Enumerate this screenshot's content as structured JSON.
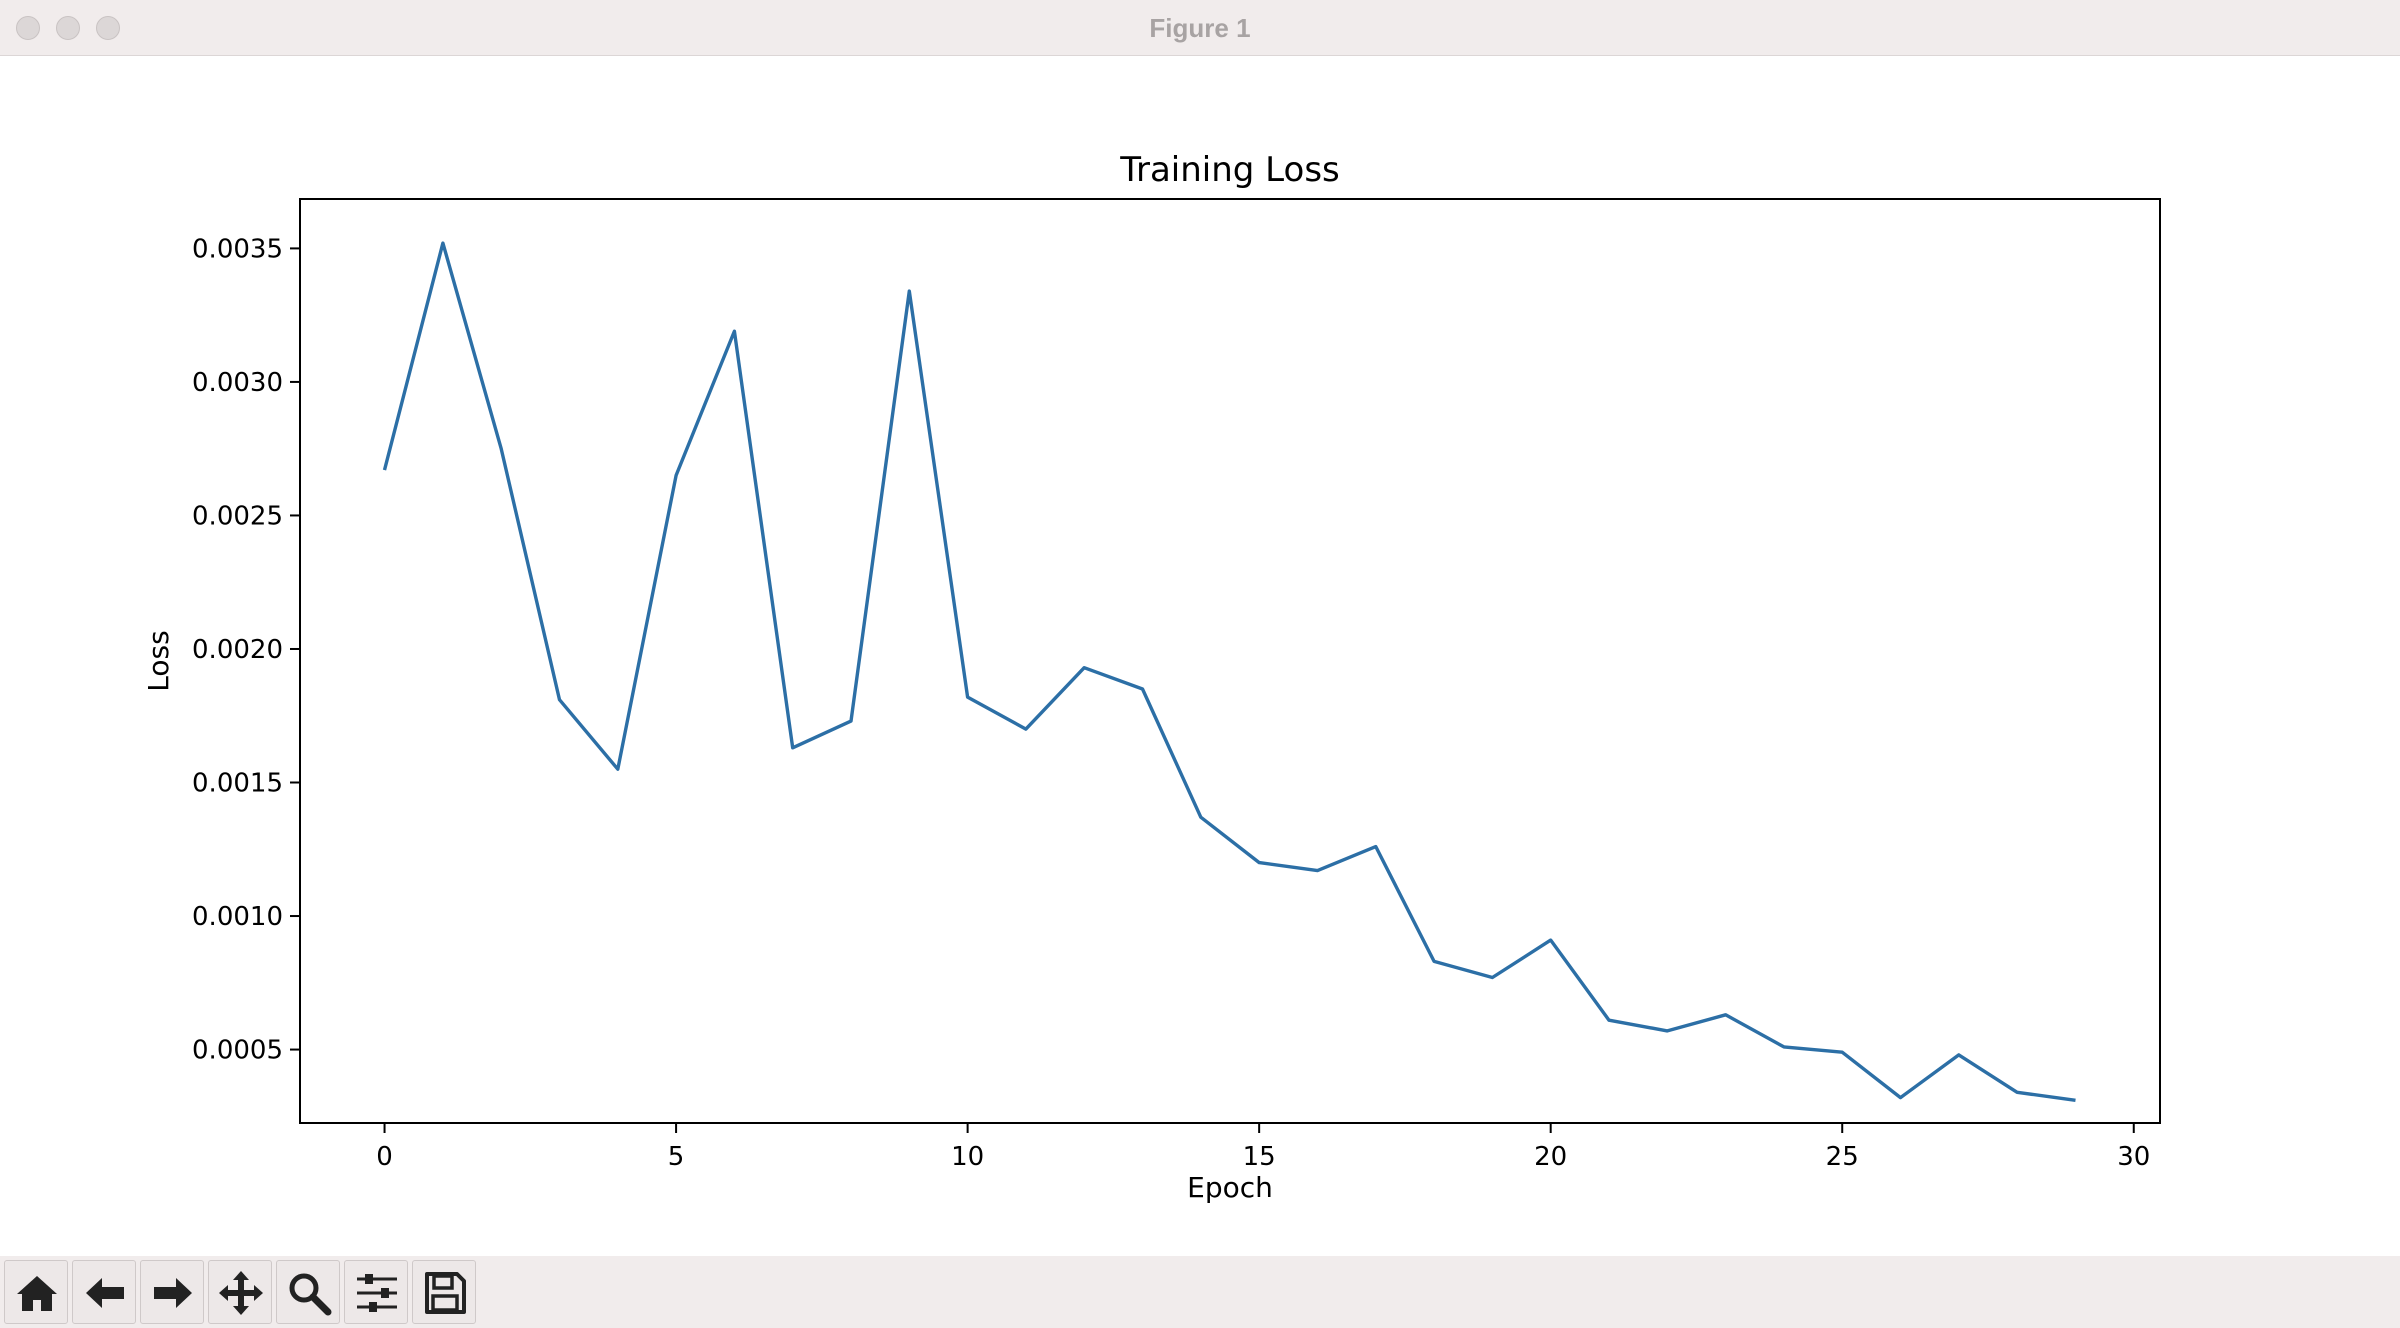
{
  "window": {
    "title": "Figure 1"
  },
  "toolbar": {
    "tools": [
      {
        "icon": "home-icon"
      },
      {
        "icon": "back-arrow-icon"
      },
      {
        "icon": "forward-arrow-icon"
      },
      {
        "icon": "pan-move-icon"
      },
      {
        "icon": "zoom-magnifier-icon"
      },
      {
        "icon": "subplots-sliders-icon"
      },
      {
        "icon": "save-disk-icon"
      }
    ]
  },
  "colors": {
    "line": "#2c6fa6",
    "titlebar": "#f1ecec",
    "toolbar": "#f1ecec"
  },
  "chart_data": {
    "type": "line",
    "title": "Training Loss",
    "xlabel": "Epoch",
    "ylabel": "Loss",
    "xlim": [
      -1.45,
      30.45
    ],
    "ylim": [
      0.000225,
      0.003685
    ],
    "xticks": [
      0,
      5,
      10,
      15,
      20,
      25,
      30
    ],
    "xtick_labels": [
      "0",
      "5",
      "10",
      "15",
      "20",
      "25",
      "30"
    ],
    "yticks": [
      0.0005,
      0.001,
      0.0015,
      0.002,
      0.0025,
      0.003,
      0.0035
    ],
    "ytick_labels": [
      "0.0005",
      "0.0010",
      "0.0015",
      "0.0020",
      "0.0025",
      "0.0030",
      "0.0035"
    ],
    "grid": false,
    "series": [
      {
        "x": [
          0,
          1,
          2,
          3,
          4,
          5,
          6,
          7,
          8,
          9,
          10,
          11,
          12,
          13,
          14,
          15,
          16,
          17,
          18,
          19,
          20,
          21,
          22,
          23,
          24,
          25,
          26,
          27,
          28,
          29
        ],
        "values": [
          0.00267,
          0.00352,
          0.00275,
          0.00181,
          0.00155,
          0.00265,
          0.00319,
          0.00163,
          0.00173,
          0.00334,
          0.00182,
          0.0017,
          0.00193,
          0.00185,
          0.00137,
          0.0012,
          0.00117,
          0.00126,
          0.00083,
          0.00077,
          0.00091,
          0.00061,
          0.00057,
          0.00063,
          0.00051,
          0.00049,
          0.00032,
          0.00048,
          0.00034,
          0.00031
        ]
      }
    ]
  }
}
